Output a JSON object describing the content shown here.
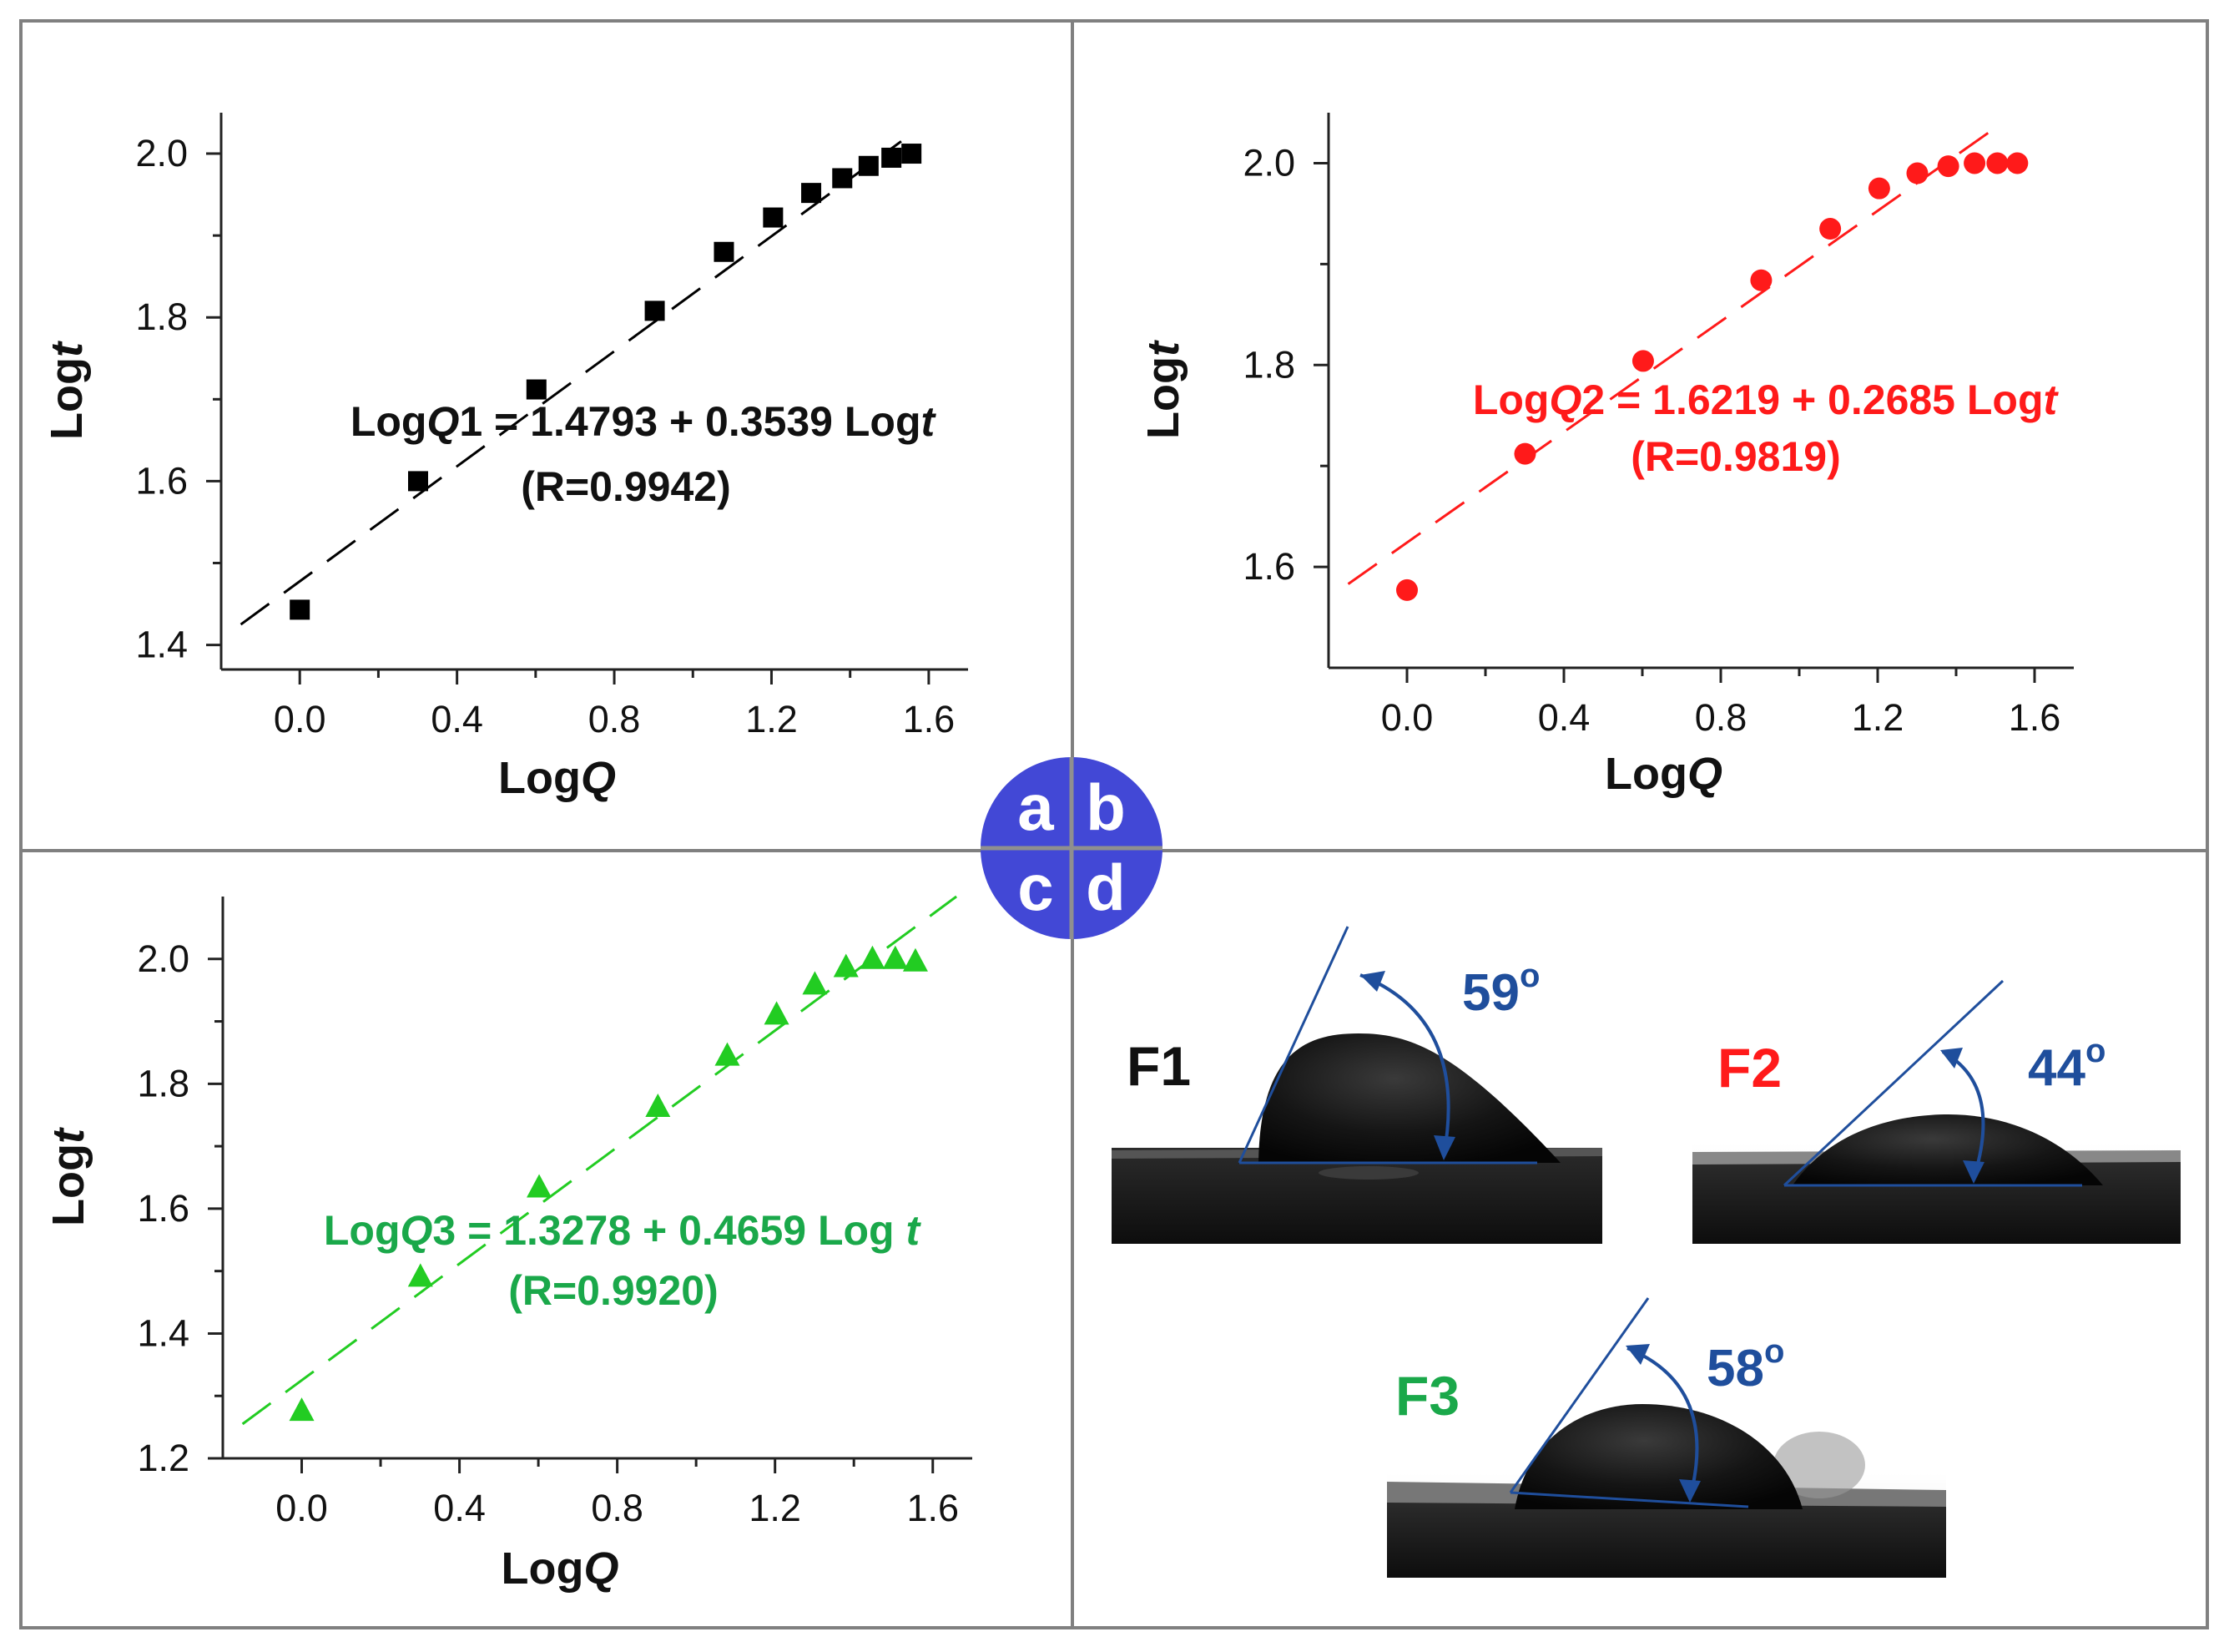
{
  "colors": {
    "panel_border": "#808080",
    "black": "#000000",
    "red": "#ff1a1a",
    "green": "#22cc22",
    "green_text": "#1aa84a",
    "angle_blue": "#1f4e9c",
    "badge_fill": "#4248d6"
  },
  "badge": {
    "letters": [
      "a",
      "b",
      "c",
      "d"
    ]
  },
  "chart_data": [
    {
      "panel": "a",
      "type": "scatter",
      "marker": "square",
      "color": "#000000",
      "xlabel": "LogQ",
      "ylabel": "Logt",
      "xlim": [
        -0.2,
        1.7
      ],
      "ylim": [
        1.37,
        2.05
      ],
      "xticks": [
        0.0,
        0.4,
        0.8,
        1.2,
        1.6
      ],
      "xtick_labels": [
        "0.0",
        "0.4",
        "0.8",
        "1.2",
        "1.6"
      ],
      "yticks": [
        1.4,
        1.6,
        1.8,
        2.0
      ],
      "ytick_labels": [
        "1.4",
        "1.6",
        "1.8",
        "2.0"
      ],
      "x": [
        0.0,
        0.301,
        0.602,
        0.903,
        1.079,
        1.204,
        1.301,
        1.38,
        1.447,
        1.505,
        1.556
      ],
      "y": [
        1.443,
        1.6,
        1.712,
        1.808,
        1.88,
        1.922,
        1.952,
        1.97,
        1.985,
        1.995,
        2.0
      ],
      "fit": {
        "x": [
          -0.15,
          1.53
        ],
        "y": [
          1.425,
          2.015
        ]
      },
      "equation": {
        "pre": "Log",
        "var": "Q",
        "post": "1 = 1.4793 + 0.3539 Log",
        "t": "t"
      },
      "r_text": "(R=0.9942)"
    },
    {
      "panel": "b",
      "type": "scatter",
      "marker": "circle",
      "color": "#ff1a1a",
      "xlabel": "LogQ",
      "ylabel": "Logt",
      "xlim": [
        -0.2,
        1.7
      ],
      "ylim": [
        1.5,
        2.05
      ],
      "xticks": [
        0.0,
        0.4,
        0.8,
        1.2,
        1.6
      ],
      "xtick_labels": [
        "0.0",
        "0.4",
        "0.8",
        "1.2",
        "1.6"
      ],
      "yticks": [
        1.6,
        1.8,
        2.0
      ],
      "ytick_labels": [
        "1.6",
        "1.8",
        "2.0"
      ],
      "x": [
        0.0,
        0.301,
        0.602,
        0.903,
        1.079,
        1.204,
        1.301,
        1.38,
        1.447,
        1.505,
        1.556
      ],
      "y": [
        1.577,
        1.712,
        1.804,
        1.884,
        1.935,
        1.975,
        1.99,
        1.997,
        2.0,
        2.0,
        2.0
      ],
      "fit": {
        "x": [
          -0.15,
          1.5
        ],
        "y": [
          1.583,
          2.035
        ]
      },
      "equation": {
        "pre": "Log",
        "var": "Q",
        "post": "2 = 1.6219 + 0.2685 Log",
        "t": "t"
      },
      "r_text": "(R=0.9819)"
    },
    {
      "panel": "c",
      "type": "scatter",
      "marker": "triangle",
      "color": "#22cc22",
      "xlabel": "LogQ",
      "ylabel": "Logt",
      "xlim": [
        -0.2,
        1.7
      ],
      "ylim": [
        1.2,
        2.1
      ],
      "xticks": [
        0.0,
        0.4,
        0.8,
        1.2,
        1.6
      ],
      "xtick_labels": [
        "0.0",
        "0.4",
        "0.8",
        "1.2",
        "1.6"
      ],
      "yticks": [
        1.2,
        1.4,
        1.6,
        1.8,
        2.0
      ],
      "ytick_labels": [
        "1.2",
        "1.4",
        "1.6",
        "1.8",
        "2.0"
      ],
      "x": [
        0.0,
        0.301,
        0.602,
        0.903,
        1.079,
        1.204,
        1.301,
        1.38,
        1.447,
        1.505,
        1.556
      ],
      "y": [
        1.276,
        1.491,
        1.634,
        1.763,
        1.845,
        1.911,
        1.959,
        1.987,
        2.0,
        2.0,
        1.996
      ],
      "fit": {
        "x": [
          -0.15,
          1.66
        ],
        "y": [
          1.255,
          2.1
        ]
      },
      "equation": {
        "pre": "Log",
        "var": "Q",
        "post": "3 = 1.3278 + 0.4659 Log ",
        "t": "t"
      },
      "r_text": "(R=0.9920)"
    }
  ],
  "photos": [
    {
      "label": "F1",
      "angle_text": "59",
      "degree": "o"
    },
    {
      "label": "F2",
      "angle_text": "44",
      "degree": "o"
    },
    {
      "label": "F3",
      "angle_text": "58",
      "degree": "o"
    }
  ]
}
